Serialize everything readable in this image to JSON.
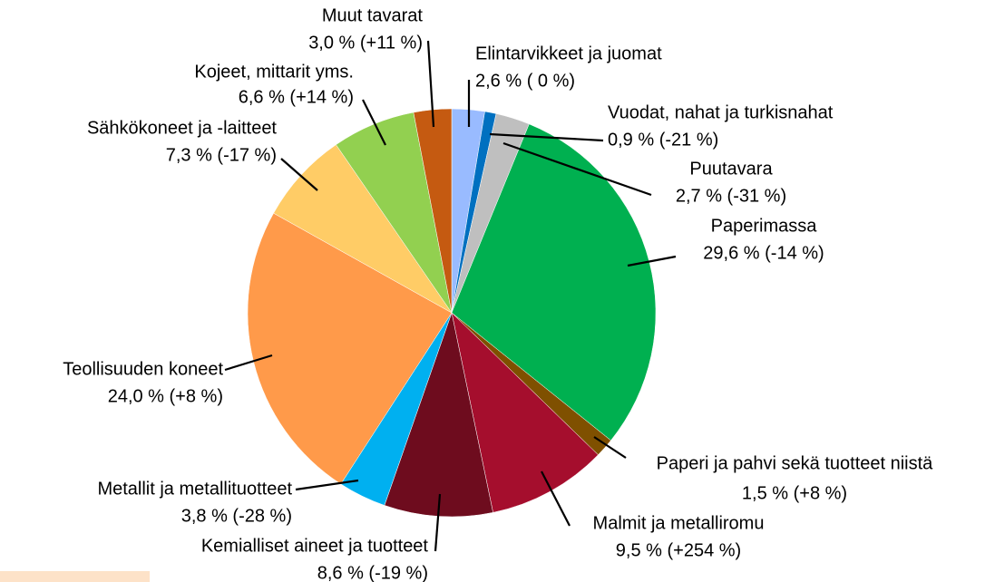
{
  "chart_data": {
    "type": "pie",
    "categories": [
      "Elintarvikkeet ja juomat",
      "Vuodat, nahat ja turkisnahat",
      "Puutavara",
      "Paperimassa",
      "Paperi ja pahvi sekä tuotteet niistä",
      "Malmit ja metalliromu",
      "Kemialliset aineet ja tuotteet",
      "Metallit ja metallituotteet",
      "Teollisuuden koneet",
      "Sähkökoneet ja -laitteet",
      "Kojeet, mittarit yms.",
      "Muut tavarat"
    ],
    "values": [
      2.6,
      0.9,
      2.7,
      29.6,
      1.5,
      9.5,
      8.6,
      3.8,
      24.0,
      7.3,
      6.6,
      3.0
    ],
    "value_labels": [
      "2,6 % ( 0 %)",
      "0,9 % (-21 %)",
      "2,7 % (-31 %)",
      "29,6 % (-14 %)",
      "1,5 % (+8 %)",
      "9,5 % (+254 %)",
      "8,6 % (-19 %)",
      "3,8 % (-28 %)",
      "24,0 % (+8 %)",
      "7,3 % (-17 %)",
      "6,6 % (+14 %)",
      "3,0 % (+11 %)"
    ],
    "colors": [
      "#99bbff",
      "#0070c0",
      "#bfbfbf",
      "#00b050",
      "#7f5000",
      "#a50e2d",
      "#6e0c1e",
      "#00b0f0",
      "#ff9a4a",
      "#ffcc66",
      "#92d050",
      "#c55a11"
    ]
  }
}
